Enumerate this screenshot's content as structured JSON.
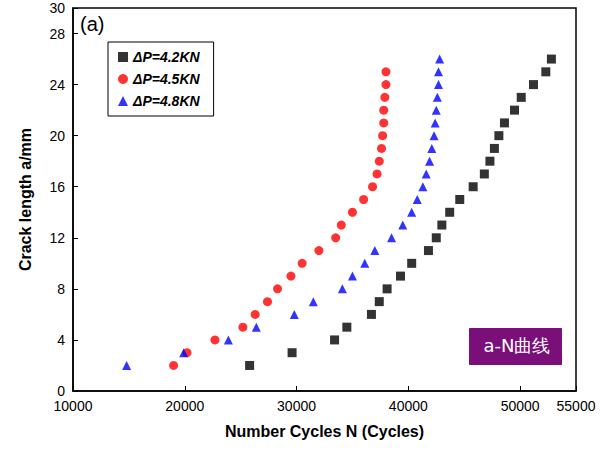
{
  "chart_data": {
    "type": "scatter",
    "x_label": "Number Cycles N (Cycles)",
    "y_label": "Crack length a/mm",
    "xlim": [
      10000,
      55000
    ],
    "xticks": [
      10000,
      20000,
      30000,
      40000,
      50000
    ],
    "ylim": [
      0,
      30
    ],
    "yticks": [
      0,
      4,
      8,
      12,
      16,
      20,
      24,
      28
    ],
    "grid": false,
    "legend": "upper left",
    "annotations": [
      {
        "text": "(a)"
      },
      {
        "text": "a-N曲线"
      }
    ],
    "series": [
      {
        "name": "ΔP=4.2KN",
        "color": "#000000",
        "marker": "square",
        "x": [
          25800,
          29600,
          33400,
          34500,
          36700,
          37400,
          38100,
          39300,
          40300,
          41800,
          42500,
          43000,
          43700,
          44600,
          45800,
          46800,
          47300,
          47700,
          48100,
          48600,
          49500,
          50100,
          51200,
          52300,
          52800
        ],
        "values": [
          2,
          3,
          4,
          5,
          6,
          7,
          8,
          9,
          10,
          11,
          12,
          13,
          14,
          15,
          16,
          17,
          18,
          19,
          20,
          21,
          22,
          23,
          24,
          25,
          26
        ]
      },
      {
        "name": "ΔP=4.5KN",
        "color": "#ff0000",
        "marker": "circle",
        "x": [
          19000,
          20200,
          22700,
          25200,
          26300,
          27400,
          28300,
          29500,
          30500,
          32000,
          33500,
          34000,
          35000,
          36000,
          36800,
          37200,
          37400,
          37600,
          37700,
          37800,
          37800,
          37900,
          38000,
          38000
        ],
        "values": [
          2,
          3,
          4,
          5,
          6,
          7,
          8,
          9,
          10,
          11,
          12,
          13,
          14,
          15,
          16,
          17,
          18,
          19,
          20,
          21,
          22,
          23,
          24,
          25
        ]
      },
      {
        "name": "ΔP=4.8KN",
        "color": "#0000ff",
        "marker": "triangle",
        "x": [
          14800,
          19900,
          23900,
          26400,
          29800,
          31500,
          34100,
          35000,
          36100,
          37000,
          38500,
          39500,
          40300,
          40800,
          41300,
          41600,
          41900,
          42100,
          42300,
          42400,
          42500,
          42600,
          42700,
          42700,
          42800
        ],
        "values": [
          2,
          3,
          4,
          5,
          6,
          7,
          8,
          9,
          10,
          11,
          12,
          13,
          14,
          15,
          16,
          17,
          18,
          19,
          20,
          21,
          22,
          23,
          24,
          25,
          26
        ]
      }
    ]
  }
}
